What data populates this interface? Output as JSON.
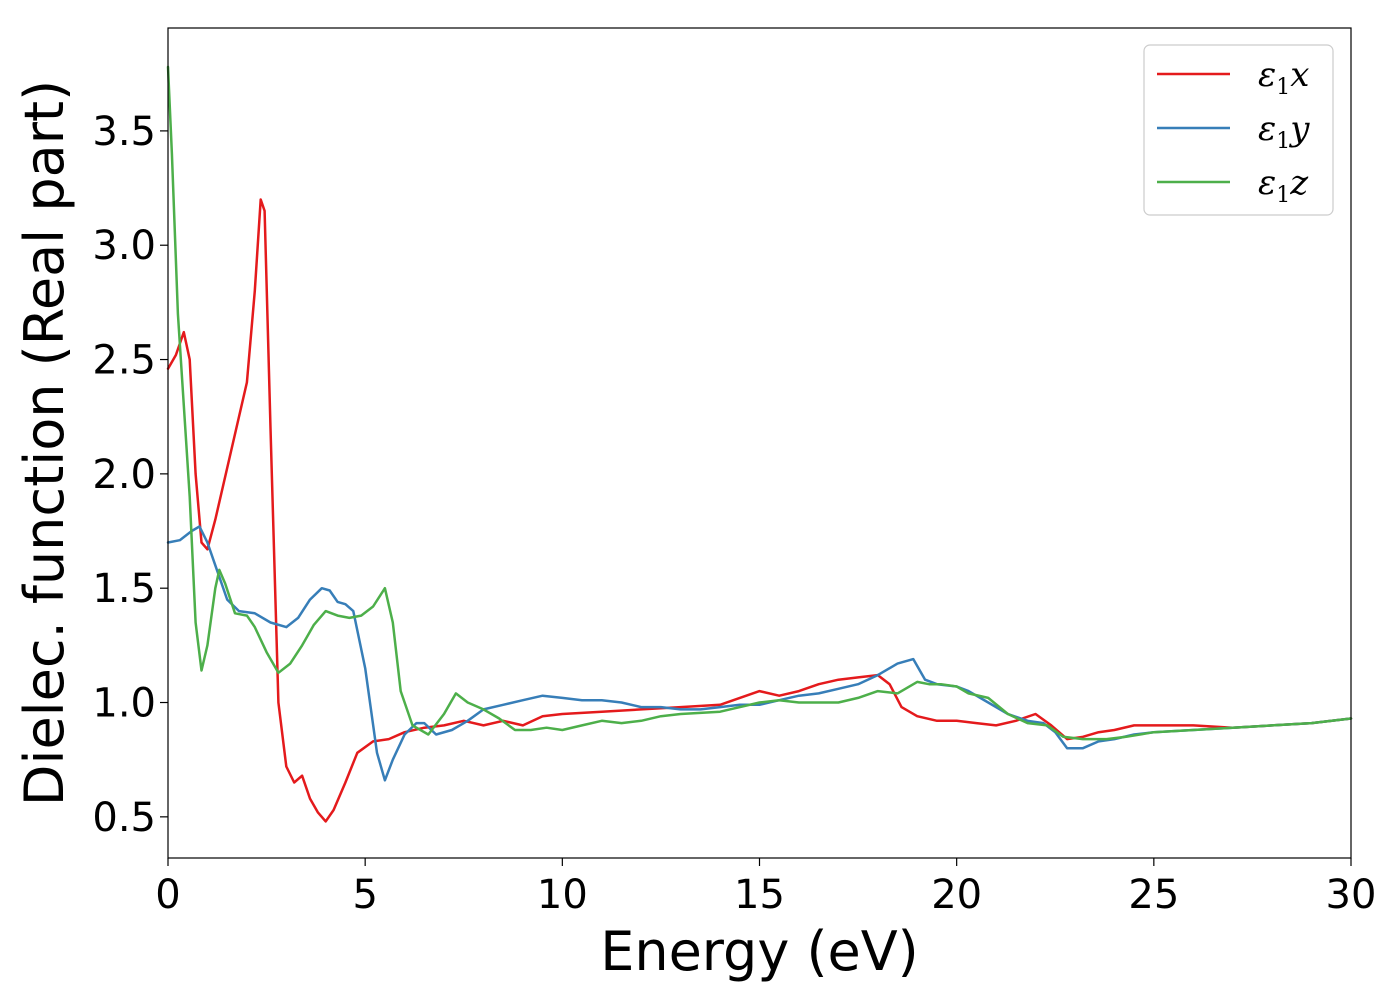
{
  "chart_data": {
    "type": "line",
    "xlabel": "Energy (eV)",
    "ylabel": "Dielec. function (Real part)",
    "xlim": [
      0,
      30
    ],
    "ylim": [
      0.32,
      3.95
    ],
    "xticks": [
      0,
      5,
      10,
      15,
      20,
      25,
      30
    ],
    "yticks": [
      0.5,
      1.0,
      1.5,
      2.0,
      2.5,
      3.0,
      3.5
    ],
    "xtick_labels": [
      "0",
      "5",
      "10",
      "15",
      "20",
      "25",
      "30"
    ],
    "ytick_labels": [
      "0.5",
      "1.0",
      "1.5",
      "2.0",
      "2.5",
      "3.0",
      "3.5"
    ],
    "grid": false,
    "legend_position": "top-right",
    "series": [
      {
        "name": "ε1x",
        "legend": {
          "symbol": "ε",
          "sub": "1",
          "axis": "x"
        },
        "color": "#e41a1c",
        "points": [
          [
            0,
            2.46
          ],
          [
            0.2,
            2.52
          ],
          [
            0.4,
            2.62
          ],
          [
            0.55,
            2.5
          ],
          [
            0.7,
            2.0
          ],
          [
            0.85,
            1.7
          ],
          [
            1.0,
            1.67
          ],
          [
            1.2,
            1.8
          ],
          [
            1.6,
            2.1
          ],
          [
            2.0,
            2.4
          ],
          [
            2.2,
            2.8
          ],
          [
            2.35,
            3.2
          ],
          [
            2.45,
            3.15
          ],
          [
            2.6,
            2.2
          ],
          [
            2.8,
            1.0
          ],
          [
            3.0,
            0.72
          ],
          [
            3.2,
            0.65
          ],
          [
            3.4,
            0.68
          ],
          [
            3.6,
            0.58
          ],
          [
            3.8,
            0.52
          ],
          [
            4.0,
            0.48
          ],
          [
            4.2,
            0.53
          ],
          [
            4.5,
            0.65
          ],
          [
            4.8,
            0.78
          ],
          [
            5.2,
            0.83
          ],
          [
            5.6,
            0.84
          ],
          [
            6.0,
            0.87
          ],
          [
            6.5,
            0.89
          ],
          [
            7.0,
            0.9
          ],
          [
            7.5,
            0.92
          ],
          [
            8.0,
            0.9
          ],
          [
            8.5,
            0.92
          ],
          [
            9.0,
            0.9
          ],
          [
            9.5,
            0.94
          ],
          [
            10.0,
            0.95
          ],
          [
            11.0,
            0.96
          ],
          [
            12.0,
            0.97
          ],
          [
            13.0,
            0.98
          ],
          [
            14.0,
            0.99
          ],
          [
            15.0,
            1.05
          ],
          [
            15.5,
            1.03
          ],
          [
            16.0,
            1.05
          ],
          [
            16.5,
            1.08
          ],
          [
            17.0,
            1.1
          ],
          [
            17.5,
            1.11
          ],
          [
            18.0,
            1.12
          ],
          [
            18.3,
            1.08
          ],
          [
            18.6,
            0.98
          ],
          [
            19.0,
            0.94
          ],
          [
            19.5,
            0.92
          ],
          [
            20.0,
            0.92
          ],
          [
            20.5,
            0.91
          ],
          [
            21.0,
            0.9
          ],
          [
            21.5,
            0.92
          ],
          [
            22.0,
            0.95
          ],
          [
            22.4,
            0.9
          ],
          [
            22.8,
            0.84
          ],
          [
            23.2,
            0.85
          ],
          [
            23.6,
            0.87
          ],
          [
            24.0,
            0.88
          ],
          [
            24.5,
            0.9
          ],
          [
            25.0,
            0.9
          ],
          [
            25.5,
            0.9
          ],
          [
            26.0,
            0.9
          ],
          [
            27.0,
            0.89
          ],
          [
            28.0,
            0.9
          ],
          [
            29.0,
            0.91
          ],
          [
            30.0,
            0.93
          ]
        ]
      },
      {
        "name": "ε1y",
        "legend": {
          "symbol": "ε",
          "sub": "1",
          "axis": "y"
        },
        "color": "#377eb8",
        "points": [
          [
            0,
            1.7
          ],
          [
            0.3,
            1.71
          ],
          [
            0.6,
            1.75
          ],
          [
            0.8,
            1.77
          ],
          [
            1.0,
            1.7
          ],
          [
            1.2,
            1.6
          ],
          [
            1.5,
            1.45
          ],
          [
            1.8,
            1.4
          ],
          [
            2.2,
            1.39
          ],
          [
            2.6,
            1.35
          ],
          [
            3.0,
            1.33
          ],
          [
            3.3,
            1.37
          ],
          [
            3.6,
            1.45
          ],
          [
            3.9,
            1.5
          ],
          [
            4.1,
            1.49
          ],
          [
            4.3,
            1.44
          ],
          [
            4.5,
            1.43
          ],
          [
            4.7,
            1.4
          ],
          [
            5.0,
            1.15
          ],
          [
            5.3,
            0.78
          ],
          [
            5.5,
            0.66
          ],
          [
            5.7,
            0.75
          ],
          [
            6.0,
            0.86
          ],
          [
            6.3,
            0.91
          ],
          [
            6.5,
            0.91
          ],
          [
            6.8,
            0.86
          ],
          [
            7.2,
            0.88
          ],
          [
            7.6,
            0.92
          ],
          [
            8.0,
            0.97
          ],
          [
            8.5,
            0.99
          ],
          [
            9.0,
            1.01
          ],
          [
            9.5,
            1.03
          ],
          [
            10.0,
            1.02
          ],
          [
            10.5,
            1.01
          ],
          [
            11.0,
            1.01
          ],
          [
            11.5,
            1.0
          ],
          [
            12.0,
            0.98
          ],
          [
            12.5,
            0.98
          ],
          [
            13.0,
            0.97
          ],
          [
            13.5,
            0.97
          ],
          [
            14.0,
            0.98
          ],
          [
            14.5,
            0.99
          ],
          [
            15.0,
            0.99
          ],
          [
            15.5,
            1.01
          ],
          [
            16.0,
            1.03
          ],
          [
            16.5,
            1.04
          ],
          [
            17.0,
            1.06
          ],
          [
            17.5,
            1.08
          ],
          [
            18.0,
            1.12
          ],
          [
            18.5,
            1.17
          ],
          [
            18.9,
            1.19
          ],
          [
            19.2,
            1.1
          ],
          [
            19.5,
            1.08
          ],
          [
            20.0,
            1.07
          ],
          [
            20.3,
            1.05
          ],
          [
            20.8,
            1.0
          ],
          [
            21.3,
            0.95
          ],
          [
            21.8,
            0.92
          ],
          [
            22.2,
            0.91
          ],
          [
            22.5,
            0.87
          ],
          [
            22.8,
            0.8
          ],
          [
            23.2,
            0.8
          ],
          [
            23.6,
            0.83
          ],
          [
            24.0,
            0.84
          ],
          [
            24.5,
            0.86
          ],
          [
            25.0,
            0.87
          ],
          [
            26.0,
            0.88
          ],
          [
            27.0,
            0.89
          ],
          [
            28.0,
            0.9
          ],
          [
            29.0,
            0.91
          ],
          [
            30.0,
            0.93
          ]
        ]
      },
      {
        "name": "ε1z",
        "legend": {
          "symbol": "ε",
          "sub": "1",
          "axis": "z"
        },
        "color": "#4daf4a",
        "points": [
          [
            0,
            3.78
          ],
          [
            0.1,
            3.4
          ],
          [
            0.25,
            2.7
          ],
          [
            0.4,
            2.3
          ],
          [
            0.55,
            1.9
          ],
          [
            0.7,
            1.35
          ],
          [
            0.85,
            1.14
          ],
          [
            1.0,
            1.25
          ],
          [
            1.2,
            1.5
          ],
          [
            1.3,
            1.58
          ],
          [
            1.45,
            1.52
          ],
          [
            1.7,
            1.39
          ],
          [
            2.0,
            1.38
          ],
          [
            2.2,
            1.33
          ],
          [
            2.5,
            1.22
          ],
          [
            2.8,
            1.13
          ],
          [
            3.1,
            1.17
          ],
          [
            3.4,
            1.25
          ],
          [
            3.7,
            1.34
          ],
          [
            4.0,
            1.4
          ],
          [
            4.3,
            1.38
          ],
          [
            4.6,
            1.37
          ],
          [
            4.9,
            1.38
          ],
          [
            5.2,
            1.42
          ],
          [
            5.5,
            1.5
          ],
          [
            5.7,
            1.35
          ],
          [
            5.9,
            1.05
          ],
          [
            6.2,
            0.9
          ],
          [
            6.6,
            0.86
          ],
          [
            7.0,
            0.95
          ],
          [
            7.3,
            1.04
          ],
          [
            7.6,
            1.0
          ],
          [
            8.0,
            0.97
          ],
          [
            8.4,
            0.93
          ],
          [
            8.8,
            0.88
          ],
          [
            9.2,
            0.88
          ],
          [
            9.6,
            0.89
          ],
          [
            10.0,
            0.88
          ],
          [
            10.5,
            0.9
          ],
          [
            11.0,
            0.92
          ],
          [
            11.5,
            0.91
          ],
          [
            12.0,
            0.92
          ],
          [
            12.5,
            0.94
          ],
          [
            13.0,
            0.95
          ],
          [
            14.0,
            0.96
          ],
          [
            15.0,
            1.0
          ],
          [
            15.5,
            1.01
          ],
          [
            16.0,
            1.0
          ],
          [
            16.5,
            1.0
          ],
          [
            17.0,
            1.0
          ],
          [
            17.5,
            1.02
          ],
          [
            18.0,
            1.05
          ],
          [
            18.5,
            1.04
          ],
          [
            19.0,
            1.09
          ],
          [
            19.3,
            1.08
          ],
          [
            19.6,
            1.08
          ],
          [
            20.0,
            1.07
          ],
          [
            20.3,
            1.04
          ],
          [
            20.8,
            1.02
          ],
          [
            21.3,
            0.95
          ],
          [
            21.8,
            0.91
          ],
          [
            22.3,
            0.9
          ],
          [
            22.7,
            0.85
          ],
          [
            23.2,
            0.84
          ],
          [
            23.8,
            0.84
          ],
          [
            24.3,
            0.85
          ],
          [
            25.0,
            0.87
          ],
          [
            26.0,
            0.88
          ],
          [
            27.0,
            0.89
          ],
          [
            28.0,
            0.9
          ],
          [
            29.0,
            0.91
          ],
          [
            30.0,
            0.93
          ]
        ]
      }
    ]
  }
}
